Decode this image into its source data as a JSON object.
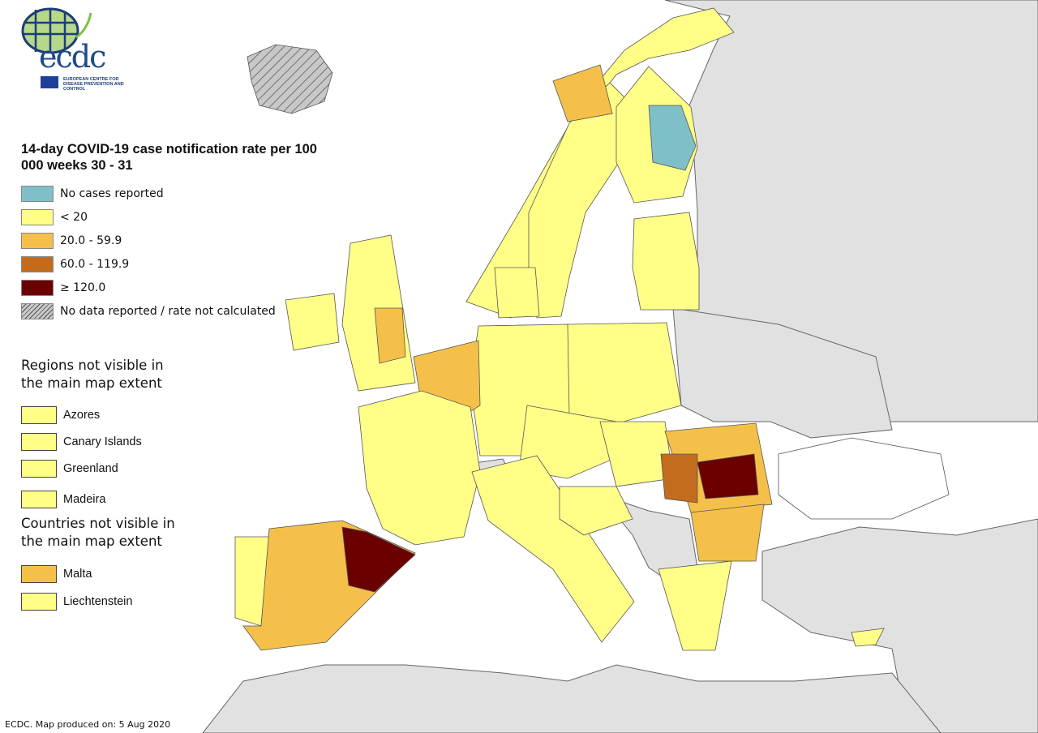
{
  "logo": {
    "text": "ecdc",
    "subtitle": "EUROPEAN CENTRE FOR DISEASE PREVENTION AND CONTROL"
  },
  "legend": {
    "title": "14-day COVID-19 case notification rate per 100 000 weeks 30 - 31",
    "classes": [
      {
        "label": "No cases reported",
        "color": "#7fbfc7"
      },
      {
        "label": "< 20",
        "color": "#ffff88"
      },
      {
        "label": "20.0 - 59.9",
        "color": "#f5c04a"
      },
      {
        "label": "60.0 - 119.9",
        "color": "#c46c1d"
      },
      {
        "label": "≥ 120.0",
        "color": "#6b0000"
      },
      {
        "label": "No data reported / rate not calculated",
        "color": "hatched-grey"
      }
    ]
  },
  "regions_not_visible": {
    "title": "Regions not visible in the main map extent",
    "items": [
      {
        "label": "Azores",
        "color": "#ffff88"
      },
      {
        "label": "Canary Islands",
        "color": "#ffff88"
      },
      {
        "label": "Greenland",
        "color": "#ffff88"
      },
      {
        "label": "Madeira",
        "color": "#ffff88"
      }
    ]
  },
  "countries_not_visible": {
    "title": "Countries not visible in the main map extent",
    "items": [
      {
        "label": "Malta",
        "color": "#f5c04a"
      },
      {
        "label": "Liechtenstein",
        "color": "#ffff88"
      }
    ]
  },
  "colors": {
    "non_eu_land": "#e1e1e1",
    "sea": "#ffffff",
    "border": "#555555"
  },
  "footer": "ECDC. Map produced on: 5 Aug 2020"
}
